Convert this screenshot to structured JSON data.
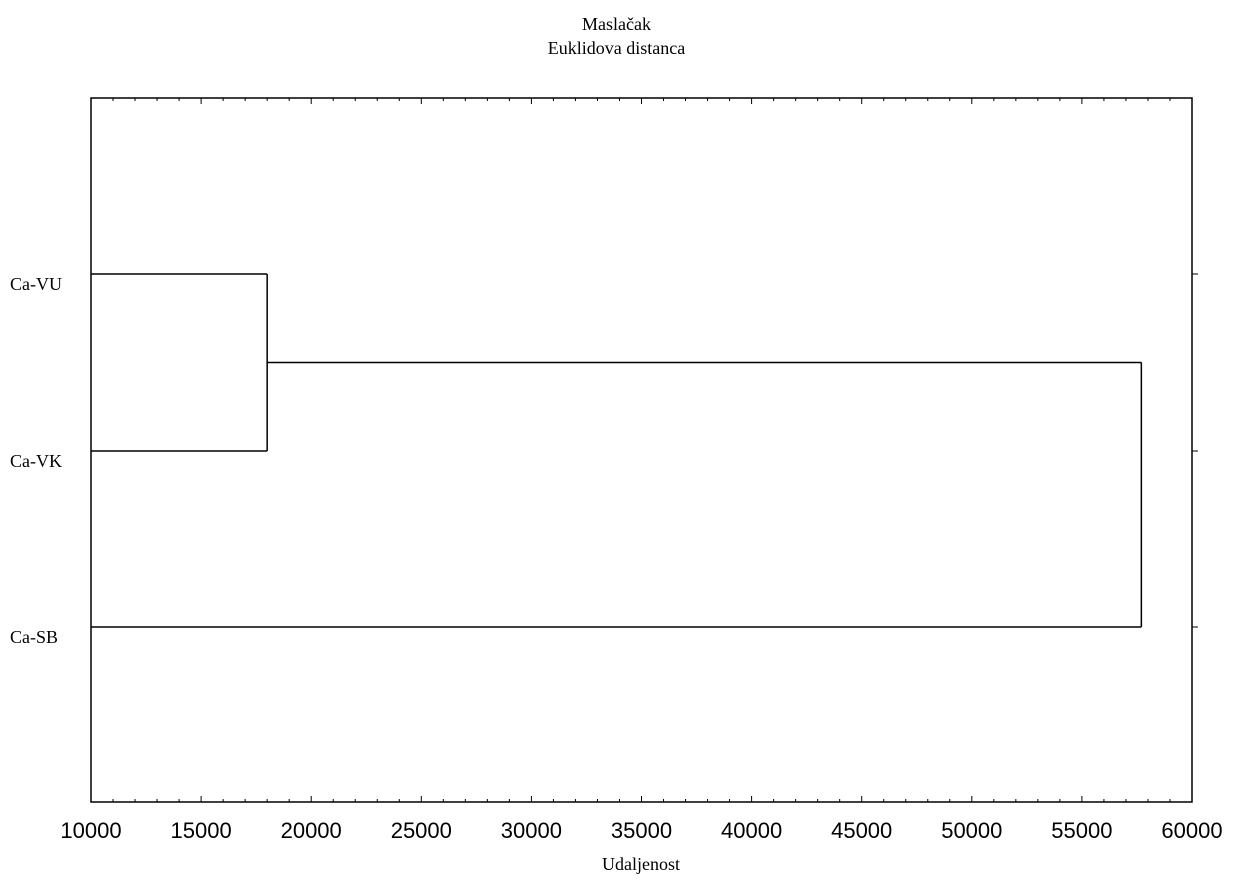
{
  "chart_data": {
    "type": "dendrogram",
    "title": "Maslačak",
    "subtitle": "Euklidova distanca",
    "xlabel": "Udaljenost",
    "xlim": [
      10000,
      60000
    ],
    "xticks": [
      10000,
      15000,
      20000,
      25000,
      30000,
      35000,
      40000,
      45000,
      50000,
      55000,
      60000
    ],
    "leaves": [
      "Ca-VU",
      "Ca-VK",
      "Ca-SB"
    ],
    "merges": [
      {
        "members": [
          "Ca-VU",
          "Ca-VK"
        ],
        "distance": 18000
      },
      {
        "members": [
          "Ca-VU",
          "Ca-VK",
          "Ca-SB"
        ],
        "distance": 57700
      }
    ]
  }
}
